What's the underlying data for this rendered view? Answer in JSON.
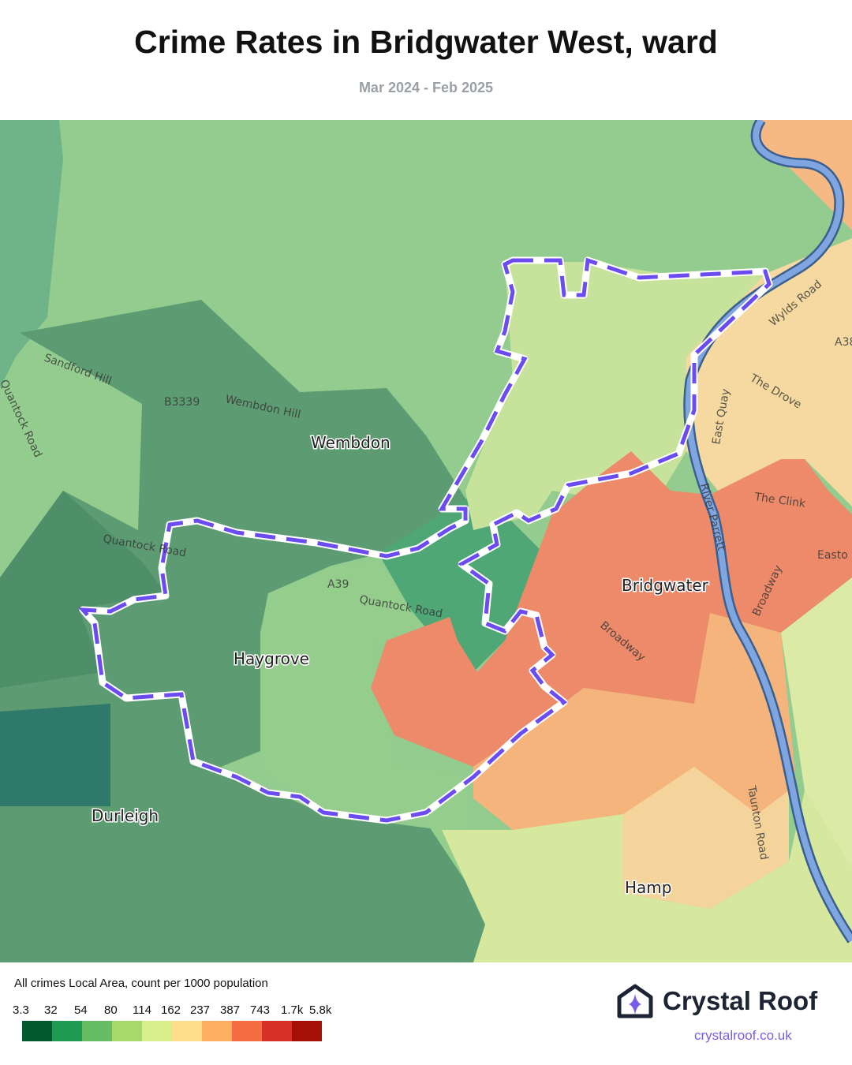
{
  "header": {
    "title": "Crime Rates in Bridgwater West, ward",
    "subtitle": "Mar 2024 - Feb 2025"
  },
  "map": {
    "places": [
      "Wembdon",
      "Haygrove",
      "Durleigh",
      "Bridgwater",
      "Hamp"
    ],
    "roads": [
      "Sandford Hill",
      "Wembdon Hill",
      "B3339",
      "Quantock Road",
      "Quantock Road",
      "A39",
      "Quantock Road",
      "Wylds Road",
      "The Drove",
      "East Quay",
      "A38",
      "The Clink",
      "River Parrett",
      "Broadway",
      "Broadway",
      "Taunton Road",
      "Easto"
    ],
    "boundary_color": "#6a4cf0"
  },
  "legend": {
    "title": "All crimes Local Area, count per 1000 population",
    "ticks": [
      "3.3",
      "32",
      "54",
      "80",
      "114",
      "162",
      "237",
      "387",
      "743",
      "1.7k",
      "5.8k"
    ],
    "colors": [
      "#005a2d",
      "#1f9a52",
      "#66bd63",
      "#a6d96a",
      "#d9ef8b",
      "#fee08b",
      "#fdae61",
      "#f46d43",
      "#d73027",
      "#a50f05"
    ]
  },
  "brand": {
    "name": "Crystal Roof",
    "url": "crystalroof.co.uk",
    "icon": "house-sparkle-icon"
  }
}
